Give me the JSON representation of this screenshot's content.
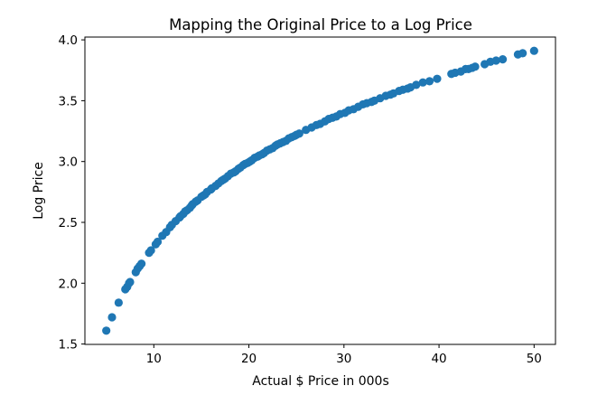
{
  "chart_data": {
    "type": "scatter",
    "title": "Mapping the Original Price to a Log Price",
    "xlabel": "Actual $ Price in 000s",
    "ylabel": "Log Price",
    "xlim": [
      2.75,
      52.25
    ],
    "ylim": [
      1.497,
      4.023
    ],
    "xticks": [
      10,
      20,
      30,
      40,
      50
    ],
    "yticks": [
      1.5,
      2.0,
      2.5,
      3.0,
      3.5,
      4.0
    ],
    "xtick_labels": [
      "10",
      "20",
      "30",
      "40",
      "50"
    ],
    "ytick_labels": [
      "1.5",
      "2.0",
      "2.5",
      "3.0",
      "3.5",
      "4.0"
    ],
    "grid": false,
    "legend": "none",
    "marker_color": "#1f77b4",
    "x": [
      5.0,
      5.6,
      6.3,
      7.0,
      7.2,
      7.4,
      7.5,
      8.1,
      8.3,
      8.5,
      8.7,
      9.5,
      9.7,
      10.2,
      10.4,
      10.9,
      11.3,
      11.7,
      11.9,
      12.3,
      12.7,
      12.8,
      13.1,
      13.3,
      13.5,
      13.8,
      14.0,
      14.1,
      14.4,
      14.6,
      15.0,
      15.2,
      15.4,
      15.6,
      16.0,
      16.1,
      16.5,
      16.8,
      17.1,
      17.3,
      17.5,
      17.8,
      18.1,
      18.4,
      18.6,
      18.9,
      19.1,
      19.4,
      19.6,
      19.9,
      20.1,
      20.3,
      20.6,
      20.9,
      21.1,
      21.4,
      21.6,
      21.9,
      22.2,
      22.5,
      22.8,
      23.0,
      23.3,
      23.6,
      23.9,
      24.2,
      24.5,
      24.8,
      25.0,
      25.3,
      26.0,
      26.6,
      27.1,
      27.5,
      28.0,
      28.4,
      28.8,
      29.2,
      29.6,
      30.1,
      30.5,
      31.0,
      31.5,
      32.0,
      32.4,
      32.9,
      33.2,
      33.8,
      34.4,
      34.9,
      35.2,
      35.8,
      36.2,
      36.7,
      37.0,
      37.6,
      38.3,
      39.0,
      39.8,
      41.3,
      41.7,
      42.3,
      42.8,
      43.1,
      43.5,
      43.8,
      44.8,
      45.4,
      46.0,
      46.7,
      48.3,
      48.8,
      50.0
    ],
    "y": [
      1.61,
      1.72,
      1.84,
      1.95,
      1.97,
      2.0,
      2.01,
      2.09,
      2.12,
      2.14,
      2.16,
      2.25,
      2.27,
      2.32,
      2.34,
      2.39,
      2.42,
      2.46,
      2.48,
      2.51,
      2.54,
      2.55,
      2.57,
      2.59,
      2.6,
      2.62,
      2.64,
      2.65,
      2.67,
      2.68,
      2.71,
      2.72,
      2.73,
      2.75,
      2.77,
      2.78,
      2.8,
      2.82,
      2.84,
      2.85,
      2.86,
      2.88,
      2.9,
      2.91,
      2.92,
      2.94,
      2.95,
      2.97,
      2.98,
      2.99,
      3.0,
      3.01,
      3.03,
      3.04,
      3.05,
      3.06,
      3.07,
      3.09,
      3.1,
      3.11,
      3.13,
      3.14,
      3.15,
      3.16,
      3.17,
      3.19,
      3.2,
      3.21,
      3.22,
      3.23,
      3.26,
      3.28,
      3.3,
      3.31,
      3.33,
      3.35,
      3.36,
      3.37,
      3.39,
      3.4,
      3.42,
      3.43,
      3.45,
      3.47,
      3.48,
      3.49,
      3.5,
      3.52,
      3.54,
      3.55,
      3.56,
      3.58,
      3.59,
      3.6,
      3.61,
      3.63,
      3.65,
      3.66,
      3.68,
      3.72,
      3.73,
      3.74,
      3.76,
      3.76,
      3.77,
      3.78,
      3.8,
      3.82,
      3.83,
      3.84,
      3.88,
      3.89,
      3.91
    ]
  }
}
